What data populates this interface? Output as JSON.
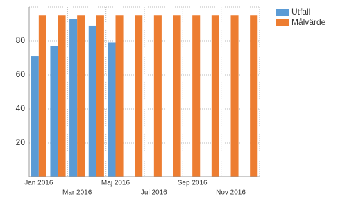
{
  "chart_data": {
    "type": "bar",
    "categories": [
      "Jan 2016",
      null,
      "Mar 2016",
      null,
      "Maj 2016",
      null,
      "Jul 2016",
      null,
      "Sep 2016",
      null,
      "Nov 2016",
      null
    ],
    "series": [
      {
        "name": "Utfall",
        "color": "#5b9bd5",
        "values": [
          71,
          77,
          93,
          89,
          79,
          null,
          null,
          null,
          null,
          null,
          null,
          null
        ]
      },
      {
        "name": "Målvärde",
        "color": "#ed7d31",
        "values": [
          95,
          95,
          95,
          95,
          95,
          95,
          95,
          95,
          95,
          95,
          95,
          95
        ]
      }
    ],
    "ylim": [
      0,
      100
    ],
    "yticks": [
      20,
      40,
      60,
      80
    ],
    "grid": true,
    "legend": "top-right"
  }
}
